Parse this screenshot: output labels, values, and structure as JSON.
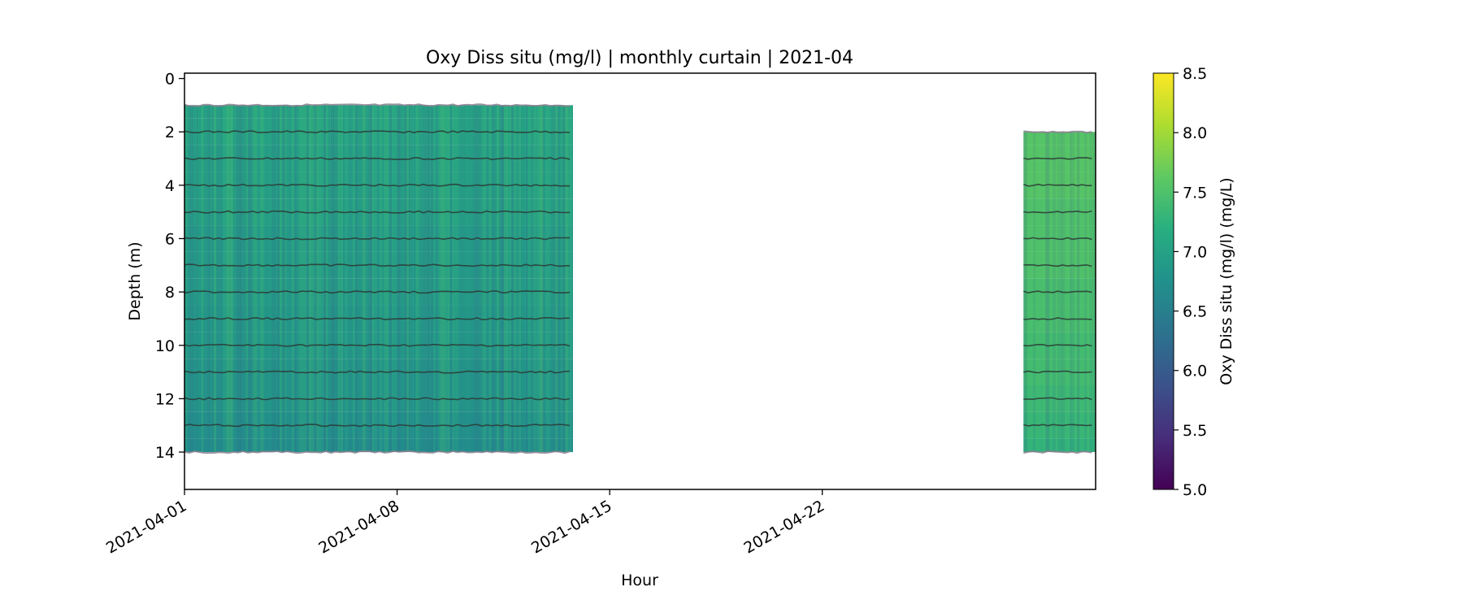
{
  "chart_data": {
    "type": "heatmap",
    "title": "Oxy Diss situ (mg/l) | monthly curtain | 2021-04",
    "xlabel": "Hour",
    "ylabel": "Depth (m)",
    "colorbar_label": "Oxy Diss situ (mg/l) (mg/L)",
    "colormap": "viridis",
    "xlim": [
      "2021-04-01",
      "2021-05-01"
    ],
    "ylim": [
      15.4,
      -0.2
    ],
    "y_inverted": true,
    "clim": [
      5.0,
      8.5
    ],
    "x_ticks": [
      "2021-04-01",
      "2021-04-08",
      "2021-04-15",
      "2021-04-22"
    ],
    "y_ticks": [
      "0",
      "2",
      "4",
      "6",
      "8",
      "10",
      "12",
      "14"
    ],
    "colorbar_ticks": [
      "5.0",
      "5.5",
      "6.0",
      "6.5",
      "7.0",
      "7.5",
      "8.0",
      "8.5"
    ],
    "sensor_depths": [
      1,
      2,
      3,
      4,
      5,
      6,
      7,
      8,
      9,
      10,
      11,
      12,
      13,
      14
    ],
    "segments": [
      {
        "start": "2021-04-01",
        "end": "2021-04-13 19:00",
        "depth_top": 1.0,
        "depth_bottom": 14.0,
        "mean_value_by_depth": [
          7.05,
          7.05,
          7.0,
          7.0,
          7.0,
          6.95,
          6.95,
          6.95,
          6.9,
          6.9,
          6.85,
          6.85,
          6.8,
          6.75
        ]
      },
      {
        "start": "2021-04-28 15:00",
        "end": "2021-05-01",
        "depth_top": 2.0,
        "depth_bottom": 14.0,
        "mean_value_by_depth": [
          null,
          7.55,
          7.55,
          7.55,
          7.5,
          7.5,
          7.5,
          7.45,
          7.45,
          7.4,
          7.4,
          7.35,
          7.3,
          7.25
        ]
      }
    ],
    "grid": false,
    "legend": "none"
  }
}
